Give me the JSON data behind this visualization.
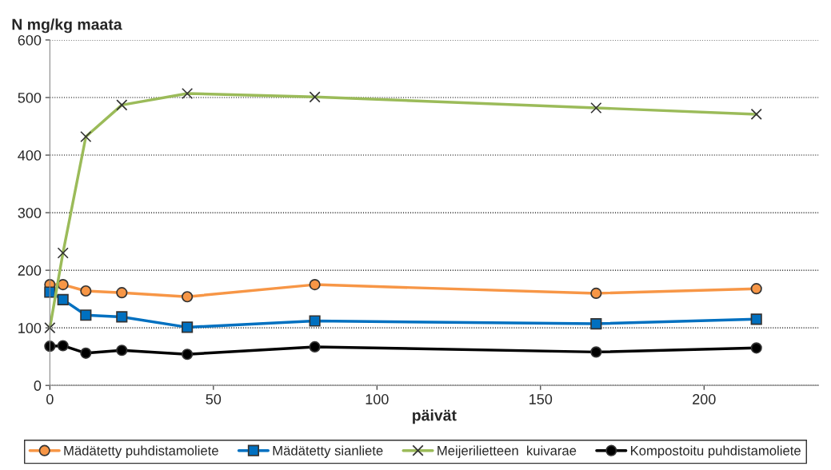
{
  "chart_data": {
    "type": "line",
    "ylabel": "N mg/kg maata",
    "xlabel": "päivät",
    "x": [
      0,
      4,
      11,
      22,
      42,
      81,
      167,
      216
    ],
    "xlim": [
      0,
      235
    ],
    "xticks": [
      0,
      50,
      100,
      150,
      200
    ],
    "ylim": [
      0,
      600
    ],
    "yticks": [
      0,
      100,
      200,
      300,
      400,
      500,
      600
    ],
    "grid": "y",
    "legend": "bottom",
    "series": [
      {
        "name": "Mädätetty puhdistamoliete",
        "color": "#f79646",
        "marker": "circle",
        "values": [
          175,
          175,
          164,
          161,
          154,
          175,
          160,
          168
        ]
      },
      {
        "name": "Mädätetty sianliete",
        "color": "#0070c0",
        "marker": "square",
        "values": [
          162,
          149,
          122,
          119,
          101,
          112,
          107,
          115
        ]
      },
      {
        "name": "Meijerilietteen  kuivarae",
        "color": "#9bbb59",
        "marker": "cross",
        "values": [
          100,
          230,
          432,
          487,
          507,
          501,
          482,
          471
        ]
      },
      {
        "name": "Kompostoitu puhdistamoliete",
        "color": "#000000",
        "marker": "circle",
        "values": [
          68,
          69,
          56,
          61,
          54,
          67,
          58,
          65
        ]
      }
    ]
  }
}
